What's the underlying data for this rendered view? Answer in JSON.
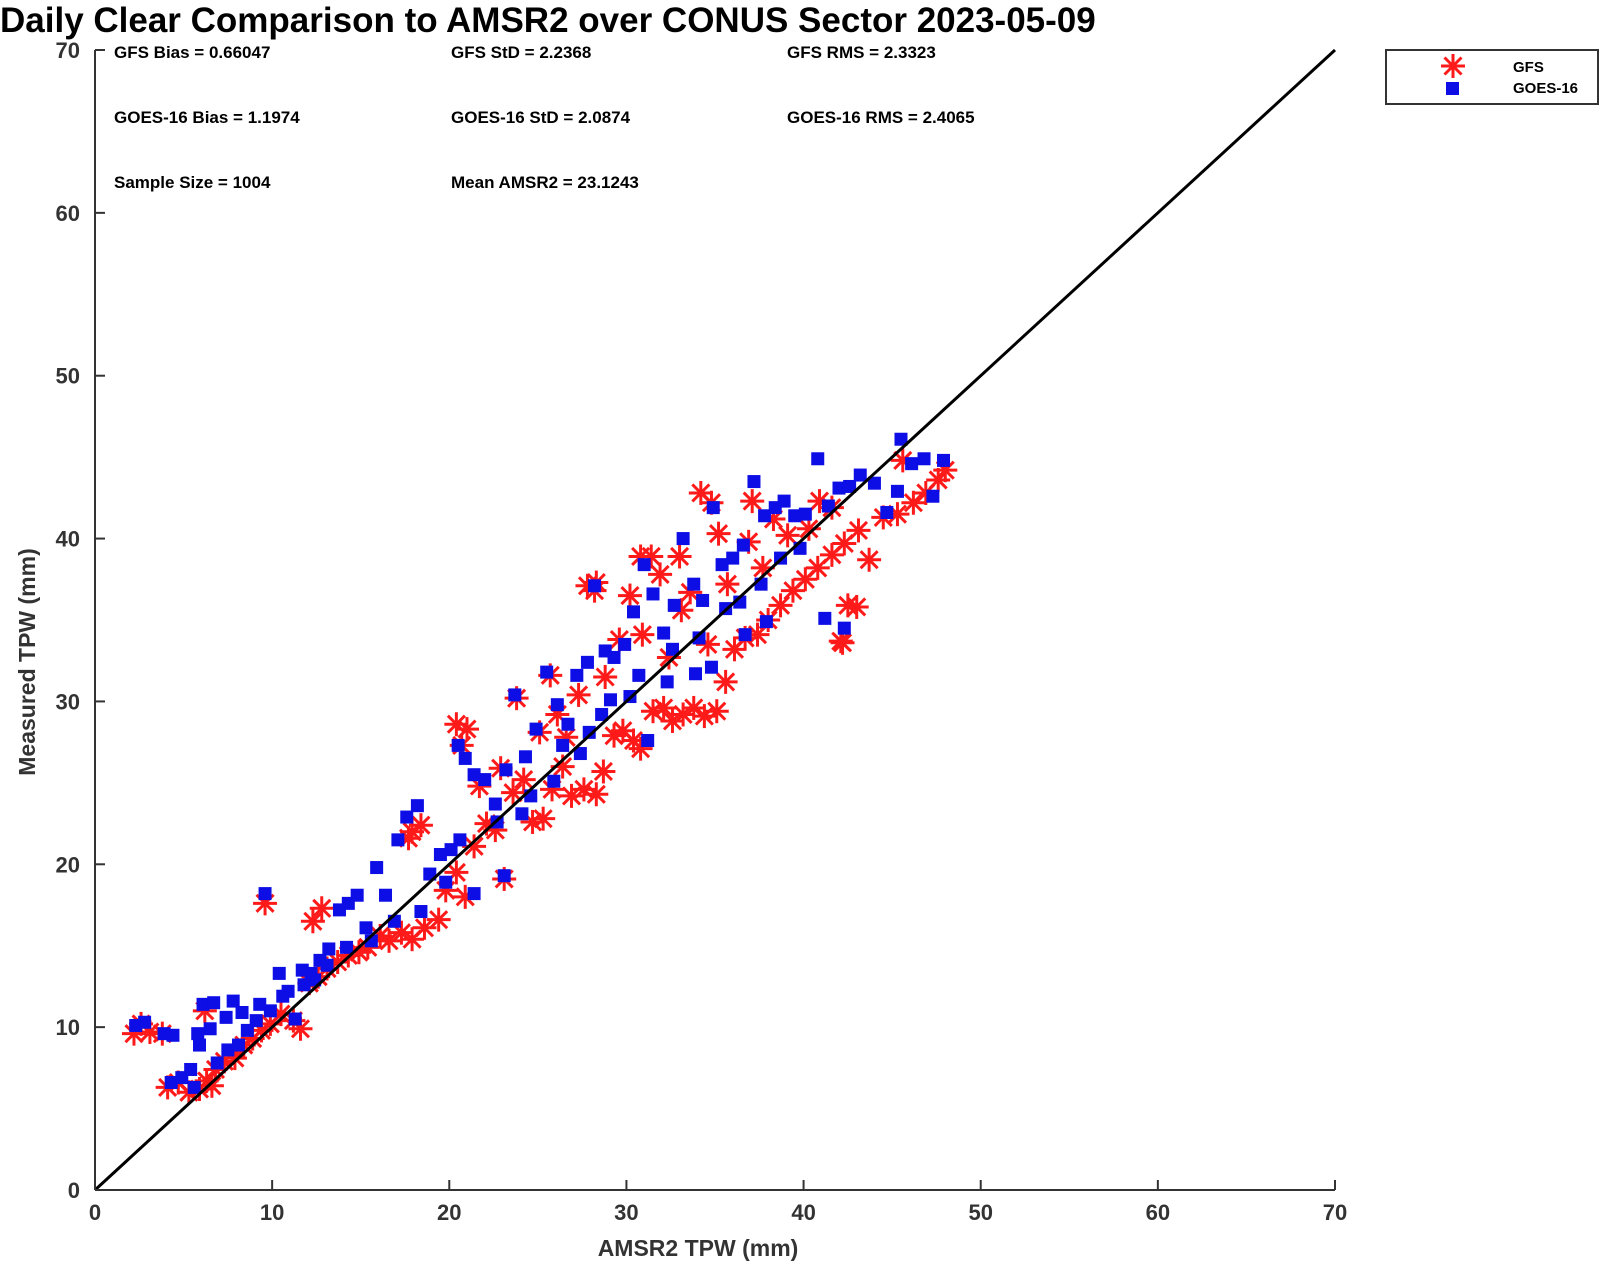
{
  "chart_data": {
    "type": "scatter",
    "title": "Daily Clear Comparison to AMSR2 over CONUS Sector 2023-05-09",
    "xlabel": "AMSR2 TPW (mm)",
    "ylabel": "Measured TPW (mm)",
    "xlim": [
      0,
      70
    ],
    "ylim": [
      0,
      70
    ],
    "xticks": [
      "0",
      "10",
      "20",
      "30",
      "40",
      "50",
      "60",
      "70"
    ],
    "yticks": [
      "0",
      "10",
      "20",
      "30",
      "40",
      "50",
      "60",
      "70"
    ],
    "grid": false,
    "legend_position": "top-right outside",
    "reference_line": {
      "x": [
        0,
        70
      ],
      "y": [
        0,
        70
      ],
      "color": "#000000"
    },
    "stats": [
      "GFS Bias = 0.66047",
      "GFS StD = 2.2368",
      "GFS RMS = 2.3323",
      "GOES-16 Bias = 1.1974",
      "GOES-16 StD = 2.0874",
      "GOES-16 RMS = 2.4065",
      "Sample Size = 1004",
      "Mean AMSR2 = 23.1243"
    ],
    "series": [
      {
        "name": "GFS",
        "marker": "asterisk",
        "color": "#ff1a1a",
        "points": [
          [
            2.2,
            9.6
          ],
          [
            2.6,
            10.2
          ],
          [
            3.1,
            9.7
          ],
          [
            3.8,
            9.6
          ],
          [
            4.1,
            6.3
          ],
          [
            4.7,
            6.6
          ],
          [
            5.3,
            6.0
          ],
          [
            5.9,
            6.2
          ],
          [
            6.3,
            6.7
          ],
          [
            6.6,
            6.4
          ],
          [
            6.2,
            11.0
          ],
          [
            6.8,
            7.4
          ],
          [
            7.3,
            7.9
          ],
          [
            7.9,
            8.1
          ],
          [
            8.4,
            8.9
          ],
          [
            8.9,
            9.3
          ],
          [
            9.4,
            9.8
          ],
          [
            9.9,
            10.2
          ],
          [
            10.5,
            10.8
          ],
          [
            11.2,
            10.4
          ],
          [
            11.6,
            9.9
          ],
          [
            12.1,
            12.7
          ],
          [
            12.6,
            13.1
          ],
          [
            13.1,
            13.6
          ],
          [
            13.7,
            14.0
          ],
          [
            14.3,
            14.4
          ],
          [
            14.9,
            14.6
          ],
          [
            15.4,
            14.9
          ],
          [
            16.1,
            15.6
          ],
          [
            16.6,
            15.3
          ],
          [
            17.3,
            15.8
          ],
          [
            17.9,
            15.4
          ],
          [
            18.6,
            16.1
          ],
          [
            19.4,
            16.6
          ],
          [
            9.6,
            17.6
          ],
          [
            12.3,
            16.5
          ],
          [
            12.8,
            17.3
          ],
          [
            17.7,
            21.6
          ],
          [
            18.4,
            22.4
          ],
          [
            17.9,
            22.0
          ],
          [
            19.8,
            18.4
          ],
          [
            20.4,
            19.5
          ],
          [
            20.9,
            18.0
          ],
          [
            21.4,
            21.1
          ],
          [
            22.1,
            22.5
          ],
          [
            22.6,
            22.1
          ],
          [
            23.1,
            19.1
          ],
          [
            23.6,
            24.4
          ],
          [
            24.2,
            25.2
          ],
          [
            24.7,
            22.6
          ],
          [
            25.3,
            22.8
          ],
          [
            25.8,
            24.6
          ],
          [
            26.4,
            26.0
          ],
          [
            26.9,
            24.2
          ],
          [
            27.6,
            24.6
          ],
          [
            28.3,
            24.3
          ],
          [
            28.7,
            25.7
          ],
          [
            29.3,
            27.9
          ],
          [
            29.8,
            28.2
          ],
          [
            30.4,
            27.6
          ],
          [
            30.8,
            27.1
          ],
          [
            31.5,
            29.4
          ],
          [
            32.1,
            29.6
          ],
          [
            32.6,
            28.8
          ],
          [
            33.2,
            29.2
          ],
          [
            33.8,
            29.6
          ],
          [
            34.4,
            29.1
          ],
          [
            35.1,
            29.4
          ],
          [
            35.6,
            31.2
          ],
          [
            36.1,
            33.2
          ],
          [
            36.7,
            33.9
          ],
          [
            37.4,
            34.1
          ],
          [
            38.0,
            35.0
          ],
          [
            38.7,
            35.9
          ],
          [
            39.4,
            36.8
          ],
          [
            40.1,
            37.5
          ],
          [
            40.8,
            38.2
          ],
          [
            41.6,
            39.0
          ],
          [
            42.3,
            39.7
          ],
          [
            43.1,
            40.5
          ],
          [
            43.7,
            38.7
          ],
          [
            44.5,
            41.3
          ],
          [
            45.3,
            41.5
          ],
          [
            46.2,
            42.2
          ],
          [
            46.9,
            42.8
          ],
          [
            47.6,
            43.6
          ],
          [
            48.0,
            44.2
          ],
          [
            42.1,
            33.7
          ],
          [
            42.5,
            35.9
          ],
          [
            43.0,
            35.8
          ],
          [
            42.2,
            33.6
          ],
          [
            45.6,
            44.8
          ],
          [
            20.4,
            28.6
          ],
          [
            21.0,
            28.3
          ],
          [
            20.7,
            27.3
          ],
          [
            23.8,
            30.2
          ],
          [
            25.7,
            31.6
          ],
          [
            27.8,
            37.1
          ],
          [
            28.3,
            37.3
          ],
          [
            28.2,
            36.8
          ],
          [
            30.8,
            38.9
          ],
          [
            31.4,
            38.9
          ],
          [
            33.0,
            38.9
          ],
          [
            33.6,
            36.7
          ],
          [
            34.2,
            42.8
          ],
          [
            34.8,
            42.2
          ],
          [
            37.1,
            42.3
          ],
          [
            38.3,
            41.2
          ],
          [
            40.9,
            42.3
          ],
          [
            41.6,
            41.9
          ],
          [
            30.2,
            36.5
          ],
          [
            31.9,
            37.8
          ],
          [
            33.1,
            35.6
          ],
          [
            34.6,
            33.5
          ],
          [
            35.7,
            37.2
          ],
          [
            36.9,
            39.8
          ],
          [
            35.2,
            40.3
          ],
          [
            37.7,
            38.2
          ],
          [
            39.1,
            40.2
          ],
          [
            40.3,
            40.6
          ],
          [
            26.1,
            29.2
          ],
          [
            27.3,
            30.4
          ],
          [
            28.8,
            31.5
          ],
          [
            29.6,
            33.8
          ],
          [
            30.9,
            34.1
          ],
          [
            32.4,
            32.7
          ],
          [
            26.6,
            27.8
          ],
          [
            25.1,
            28.1
          ],
          [
            22.9,
            25.9
          ],
          [
            21.7,
            24.8
          ]
        ]
      },
      {
        "name": "GOES-16",
        "marker": "square",
        "color": "#0d0de6",
        "points": [
          [
            2.3,
            10.1
          ],
          [
            2.8,
            10.3
          ],
          [
            3.9,
            9.6
          ],
          [
            4.4,
            9.5
          ],
          [
            4.3,
            6.6
          ],
          [
            4.9,
            6.9
          ],
          [
            5.6,
            6.3
          ],
          [
            5.8,
            9.6
          ],
          [
            6.1,
            11.4
          ],
          [
            6.7,
            11.5
          ],
          [
            6.9,
            7.8
          ],
          [
            7.5,
            8.6
          ],
          [
            7.8,
            11.6
          ],
          [
            8.1,
            8.9
          ],
          [
            8.6,
            9.8
          ],
          [
            9.1,
            10.4
          ],
          [
            9.6,
            18.2
          ],
          [
            9.9,
            11.0
          ],
          [
            10.4,
            13.3
          ],
          [
            10.9,
            12.2
          ],
          [
            11.3,
            10.5
          ],
          [
            11.7,
            13.5
          ],
          [
            12.2,
            13.3
          ],
          [
            12.7,
            14.1
          ],
          [
            13.2,
            14.8
          ],
          [
            13.8,
            17.2
          ],
          [
            14.3,
            17.6
          ],
          [
            14.8,
            18.1
          ],
          [
            15.3,
            16.1
          ],
          [
            15.9,
            19.8
          ],
          [
            16.4,
            18.1
          ],
          [
            17.1,
            21.5
          ],
          [
            17.6,
            22.9
          ],
          [
            18.2,
            23.6
          ],
          [
            18.9,
            19.4
          ],
          [
            19.5,
            20.6
          ],
          [
            20.1,
            20.9
          ],
          [
            20.6,
            21.5
          ],
          [
            20.9,
            26.5
          ],
          [
            20.5,
            27.3
          ],
          [
            21.4,
            25.5
          ],
          [
            22.0,
            25.2
          ],
          [
            22.6,
            23.7
          ],
          [
            23.2,
            25.8
          ],
          [
            23.7,
            30.4
          ],
          [
            24.3,
            26.6
          ],
          [
            24.9,
            28.3
          ],
          [
            25.5,
            31.8
          ],
          [
            26.1,
            29.8
          ],
          [
            26.7,
            28.6
          ],
          [
            27.2,
            31.6
          ],
          [
            27.8,
            32.4
          ],
          [
            28.2,
            37.1
          ],
          [
            28.8,
            33.1
          ],
          [
            29.3,
            32.7
          ],
          [
            29.9,
            33.5
          ],
          [
            30.4,
            35.5
          ],
          [
            31.0,
            38.4
          ],
          [
            31.5,
            36.6
          ],
          [
            32.1,
            34.2
          ],
          [
            32.7,
            35.9
          ],
          [
            33.2,
            40.0
          ],
          [
            33.8,
            37.2
          ],
          [
            34.3,
            36.2
          ],
          [
            34.9,
            41.9
          ],
          [
            35.4,
            38.4
          ],
          [
            36.0,
            38.8
          ],
          [
            36.6,
            39.6
          ],
          [
            37.2,
            43.5
          ],
          [
            37.8,
            41.4
          ],
          [
            38.4,
            41.9
          ],
          [
            38.9,
            42.3
          ],
          [
            39.5,
            41.4
          ],
          [
            40.1,
            41.5
          ],
          [
            40.8,
            44.9
          ],
          [
            41.4,
            42.0
          ],
          [
            42.0,
            43.1
          ],
          [
            42.6,
            43.2
          ],
          [
            43.2,
            43.9
          ],
          [
            44.0,
            43.4
          ],
          [
            44.7,
            41.6
          ],
          [
            45.3,
            42.9
          ],
          [
            45.5,
            46.1
          ],
          [
            46.1,
            44.6
          ],
          [
            46.8,
            44.9
          ],
          [
            47.3,
            42.6
          ],
          [
            47.9,
            44.8
          ],
          [
            41.2,
            35.1
          ],
          [
            42.3,
            34.5
          ],
          [
            32.6,
            33.2
          ],
          [
            33.9,
            31.7
          ],
          [
            34.8,
            32.1
          ],
          [
            31.2,
            27.6
          ],
          [
            29.1,
            30.1
          ],
          [
            27.4,
            26.8
          ],
          [
            25.9,
            25.1
          ],
          [
            24.6,
            24.2
          ],
          [
            23.1,
            19.3
          ],
          [
            21.4,
            18.2
          ],
          [
            19.8,
            18.9
          ],
          [
            18.4,
            17.1
          ],
          [
            16.9,
            16.5
          ],
          [
            15.6,
            15.3
          ],
          [
            14.2,
            14.9
          ],
          [
            13.1,
            13.8
          ],
          [
            12.4,
            12.9
          ],
          [
            11.8,
            12.6
          ],
          [
            10.6,
            11.9
          ],
          [
            9.3,
            11.4
          ],
          [
            8.3,
            10.9
          ],
          [
            7.4,
            10.6
          ],
          [
            6.5,
            9.9
          ],
          [
            5.9,
            8.9
          ],
          [
            5.4,
            7.4
          ],
          [
            22.7,
            22.6
          ],
          [
            24.1,
            23.1
          ],
          [
            26.4,
            27.3
          ],
          [
            28.6,
            29.2
          ],
          [
            30.7,
            31.6
          ],
          [
            32.3,
            31.2
          ],
          [
            35.6,
            35.7
          ],
          [
            36.4,
            36.1
          ],
          [
            37.6,
            37.2
          ],
          [
            38.7,
            38.8
          ],
          [
            39.8,
            39.4
          ],
          [
            37.9,
            34.9
          ],
          [
            36.7,
            34.1
          ],
          [
            34.1,
            33.9
          ],
          [
            30.2,
            30.3
          ],
          [
            27.9,
            28.1
          ]
        ]
      }
    ]
  }
}
